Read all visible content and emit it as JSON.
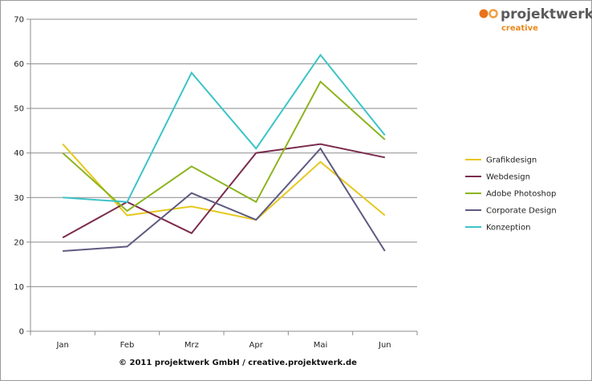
{
  "logo": {
    "name": "projektwerk",
    "sub": "creative",
    "colors": {
      "circle": "#e8731c",
      "ring": "#f0a040",
      "text": "#5a5a5a",
      "sub": "#e8891c"
    }
  },
  "copyright": "© 2011 projektwerk GmbH / creative.projektwerk.de",
  "chart_data": {
    "type": "line",
    "categories": [
      "Jan",
      "Feb",
      "Mrz",
      "Apr",
      "Mai",
      "Jun"
    ],
    "ylim": [
      0,
      70
    ],
    "yticks": [
      0,
      10,
      20,
      30,
      40,
      50,
      60,
      70
    ],
    "grid": true,
    "legend_position": "right",
    "title": "",
    "xlabel": "",
    "ylabel": "",
    "series": [
      {
        "name": "Grafikdesign",
        "color": "#e6c81e",
        "values": [
          42,
          26,
          28,
          25,
          38,
          26
        ]
      },
      {
        "name": "Webdesign",
        "color": "#7b2d4e",
        "values": [
          21,
          29,
          22,
          40,
          42,
          39
        ]
      },
      {
        "name": "Adobe Photoshop",
        "color": "#8cb41e",
        "values": [
          40,
          27,
          37,
          29,
          56,
          43
        ]
      },
      {
        "name": "Corporate Design",
        "color": "#5e5a80",
        "values": [
          18,
          19,
          31,
          25,
          41,
          18
        ]
      },
      {
        "name": "Konzeption",
        "color": "#3cc4c8",
        "values": [
          30,
          29,
          58,
          41,
          62,
          44
        ]
      }
    ]
  }
}
